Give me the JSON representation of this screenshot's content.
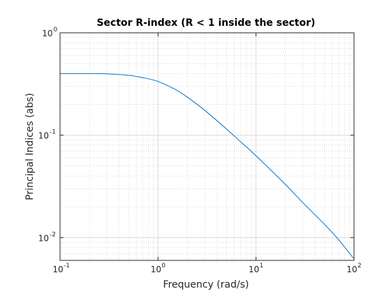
{
  "chart_data": {
    "type": "line",
    "title": "Sector R-index (R < 1 inside the sector)",
    "xlabel": "Frequency (rad/s)",
    "ylabel": "Principal Indices (abs)",
    "xscale": "log",
    "yscale": "log",
    "xlim": [
      0.1,
      100
    ],
    "ylim": [
      0.006,
      1
    ],
    "grid": true,
    "minor_grid": true,
    "x_ticks": [
      {
        "base": "10",
        "exp": "-1",
        "value": 0.1
      },
      {
        "base": "10",
        "exp": "0",
        "value": 1
      },
      {
        "base": "10",
        "exp": "1",
        "value": 10
      },
      {
        "base": "10",
        "exp": "2",
        "value": 100
      }
    ],
    "y_ticks": [
      {
        "base": "10",
        "exp": "0",
        "value": 1
      },
      {
        "base": "10",
        "exp": "-1",
        "value": 0.1
      },
      {
        "base": "10",
        "exp": "-2",
        "value": 0.01
      }
    ],
    "series": [
      {
        "color": "#0072bd",
        "x": [
          0.1,
          0.2,
          0.3,
          0.5,
          0.7,
          1.0,
          1.5,
          2.0,
          3.0,
          5.0,
          7.0,
          10,
          20,
          30,
          50,
          70,
          100
        ],
        "y": [
          0.4,
          0.4,
          0.398,
          0.385,
          0.365,
          0.335,
          0.28,
          0.235,
          0.175,
          0.115,
          0.086,
          0.063,
          0.033,
          0.022,
          0.0135,
          0.0095,
          0.0062
        ]
      }
    ]
  }
}
